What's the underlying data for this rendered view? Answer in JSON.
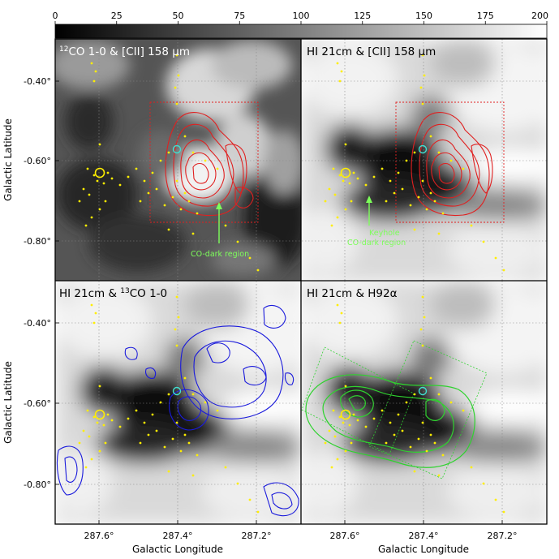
{
  "colorbar": {
    "ticks": [
      0,
      25,
      50,
      75,
      100,
      125,
      150,
      175,
      200
    ],
    "vmin": 0,
    "vmax": 200
  },
  "axes": {
    "xlabel": "Galactic Longitude",
    "ylabel": "Galactic Latitude",
    "x_ticks": [
      "287.6°",
      "287.4°",
      "287.2°"
    ],
    "y_ticks": [
      "-0.40°",
      "-0.60°",
      "-0.80°"
    ]
  },
  "chart_data": [
    {
      "type": "heatmap",
      "title_pre": "12",
      "title": "CO 1-0 & [CII] 158 μm",
      "contour_color": "#e02020",
      "annotation": [
        "CO-dark region"
      ]
    },
    {
      "type": "heatmap",
      "title": "HI 21cm & [CII] 158 μm",
      "contour_color": "#e02020",
      "annotation": [
        "Keyhole",
        "CO-dark region"
      ]
    },
    {
      "type": "heatmap",
      "title": "HI 21cm & ",
      "title_pre": "13",
      "title_post": "CO 1-0",
      "contour_color": "#1a1adc"
    },
    {
      "type": "heatmap",
      "title": "HI 21cm & H92α",
      "contour_color": "#2fd22f"
    }
  ]
}
